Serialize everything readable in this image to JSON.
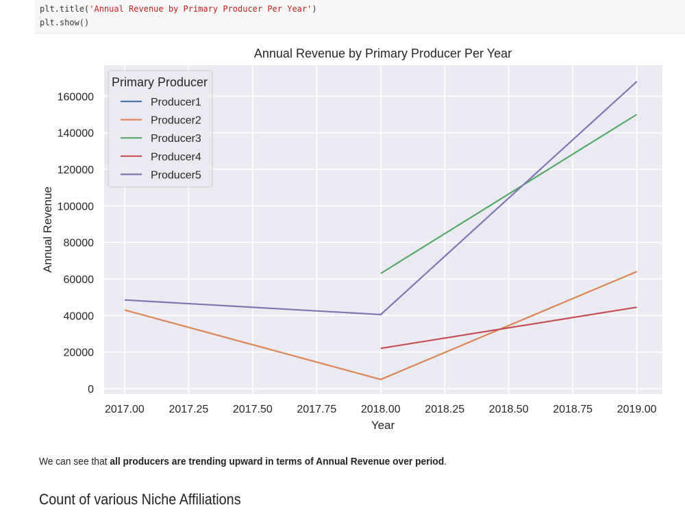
{
  "code": {
    "line1_prefix": "plt.title(",
    "line1_string": "'Annual Revenue by Primary Producer Per Year'",
    "line1_suffix": ")",
    "line2": "plt.show()"
  },
  "chart_data": {
    "type": "line",
    "title": "Annual Revenue by Primary Producer Per Year",
    "xlabel": "Year",
    "ylabel": "Annual Revenue",
    "xlim": [
      2016.92,
      2019.1
    ],
    "ylim": [
      -3000,
      177000
    ],
    "xticks": [
      2017.0,
      2017.25,
      2017.5,
      2017.75,
      2018.0,
      2018.25,
      2018.5,
      2018.75,
      2019.0
    ],
    "xtick_labels": [
      "2017.00",
      "2017.25",
      "2017.50",
      "2017.75",
      "2018.00",
      "2018.25",
      "2018.50",
      "2018.75",
      "2019.00"
    ],
    "yticks": [
      0,
      20000,
      40000,
      60000,
      80000,
      100000,
      120000,
      140000,
      160000
    ],
    "ytick_labels": [
      "0",
      "20000",
      "40000",
      "60000",
      "80000",
      "100000",
      "120000",
      "140000",
      "160000"
    ],
    "grid": true,
    "legend": {
      "title": "Primary Producer",
      "placement": "top-left"
    },
    "series": [
      {
        "name": "Producer1",
        "color": "#4c72b0",
        "x": [],
        "y": []
      },
      {
        "name": "Producer2",
        "color": "#dd8452",
        "x": [
          2017,
          2018,
          2019
        ],
        "y": [
          43000,
          5000,
          64000
        ]
      },
      {
        "name": "Producer3",
        "color": "#55a868",
        "x": [
          2018,
          2019
        ],
        "y": [
          63000,
          150000
        ]
      },
      {
        "name": "Producer4",
        "color": "#c44e52",
        "x": [
          2018,
          2019
        ],
        "y": [
          22000,
          44500
        ]
      },
      {
        "name": "Producer5",
        "color": "#8172b3",
        "x": [
          2017,
          2018,
          2019
        ],
        "y": [
          48500,
          40500,
          168000
        ]
      }
    ]
  },
  "markdown": {
    "text_before": "We can see that ",
    "text_bold": "all producers are trending upward in terms of Annual Revenue over period",
    "text_after": ".",
    "heading": "Count of various Niche Affiliations"
  }
}
